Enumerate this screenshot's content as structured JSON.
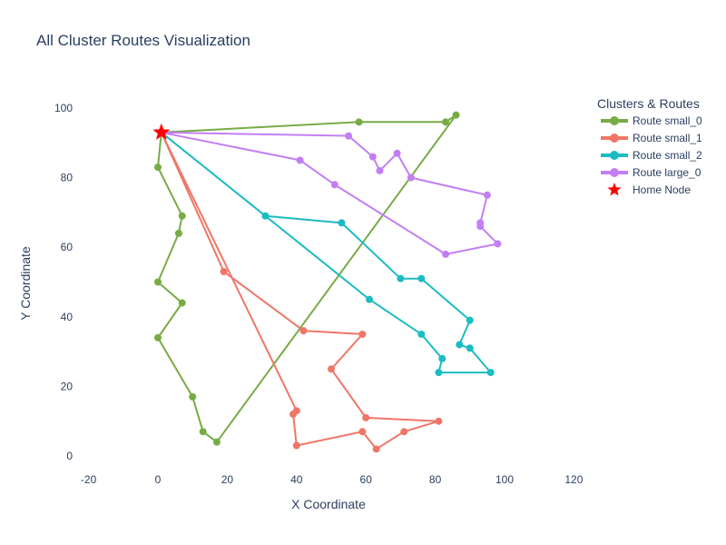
{
  "chart_data": {
    "type": "line",
    "title": "All Cluster Routes Visualization",
    "xlabel": "X Coordinate",
    "ylabel": "Y Coordinate",
    "xlim": [
      -20,
      120
    ],
    "ylim": [
      -5,
      110
    ],
    "xticks": [
      -20,
      0,
      20,
      40,
      60,
      80,
      100,
      120
    ],
    "yticks": [
      0,
      20,
      40,
      60,
      80,
      100
    ],
    "grid": false,
    "legend_title": "Clusters & Routes",
    "legend_position": "top-right",
    "home_node": {
      "name": "Home Node",
      "x": 1,
      "y": 93,
      "color": "#ff0000",
      "marker": "star"
    },
    "series": [
      {
        "name": "Route small_0",
        "color": "#77ac44",
        "points": [
          [
            1,
            93
          ],
          [
            58,
            96
          ],
          [
            83,
            96
          ],
          [
            86,
            98
          ],
          [
            17,
            4
          ],
          [
            13,
            7
          ],
          [
            10,
            17
          ],
          [
            0,
            34
          ],
          [
            7,
            44
          ],
          [
            0,
            50
          ],
          [
            6,
            64
          ],
          [
            7,
            69
          ],
          [
            0,
            83
          ],
          [
            1,
            93
          ]
        ]
      },
      {
        "name": "Route small_1",
        "color": "#ef7667",
        "points": [
          [
            1,
            93
          ],
          [
            19,
            53
          ],
          [
            42,
            36
          ],
          [
            59,
            35
          ],
          [
            50,
            25
          ],
          [
            60,
            11
          ],
          [
            81,
            10
          ],
          [
            71,
            7
          ],
          [
            63,
            2
          ],
          [
            59,
            7
          ],
          [
            40,
            3
          ],
          [
            39,
            12
          ],
          [
            40,
            13
          ],
          [
            1,
            93
          ]
        ]
      },
      {
        "name": "Route small_2",
        "color": "#1bbcc2",
        "points": [
          [
            1,
            93
          ],
          [
            31,
            69
          ],
          [
            53,
            67
          ],
          [
            70,
            51
          ],
          [
            76,
            51
          ],
          [
            90,
            39
          ],
          [
            87,
            32
          ],
          [
            90,
            31
          ],
          [
            96,
            24
          ],
          [
            81,
            24
          ],
          [
            82,
            28
          ],
          [
            76,
            35
          ],
          [
            61,
            45
          ],
          [
            1,
            93
          ]
        ]
      },
      {
        "name": "Route large_0",
        "color": "#c27ff3",
        "points": [
          [
            1,
            93
          ],
          [
            55,
            92
          ],
          [
            62,
            86
          ],
          [
            64,
            82
          ],
          [
            69,
            87
          ],
          [
            73,
            80
          ],
          [
            95,
            75
          ],
          [
            93,
            67
          ],
          [
            93,
            66
          ],
          [
            98,
            61
          ],
          [
            83,
            58
          ],
          [
            51,
            78
          ],
          [
            41,
            85
          ],
          [
            1,
            93
          ]
        ]
      }
    ]
  }
}
